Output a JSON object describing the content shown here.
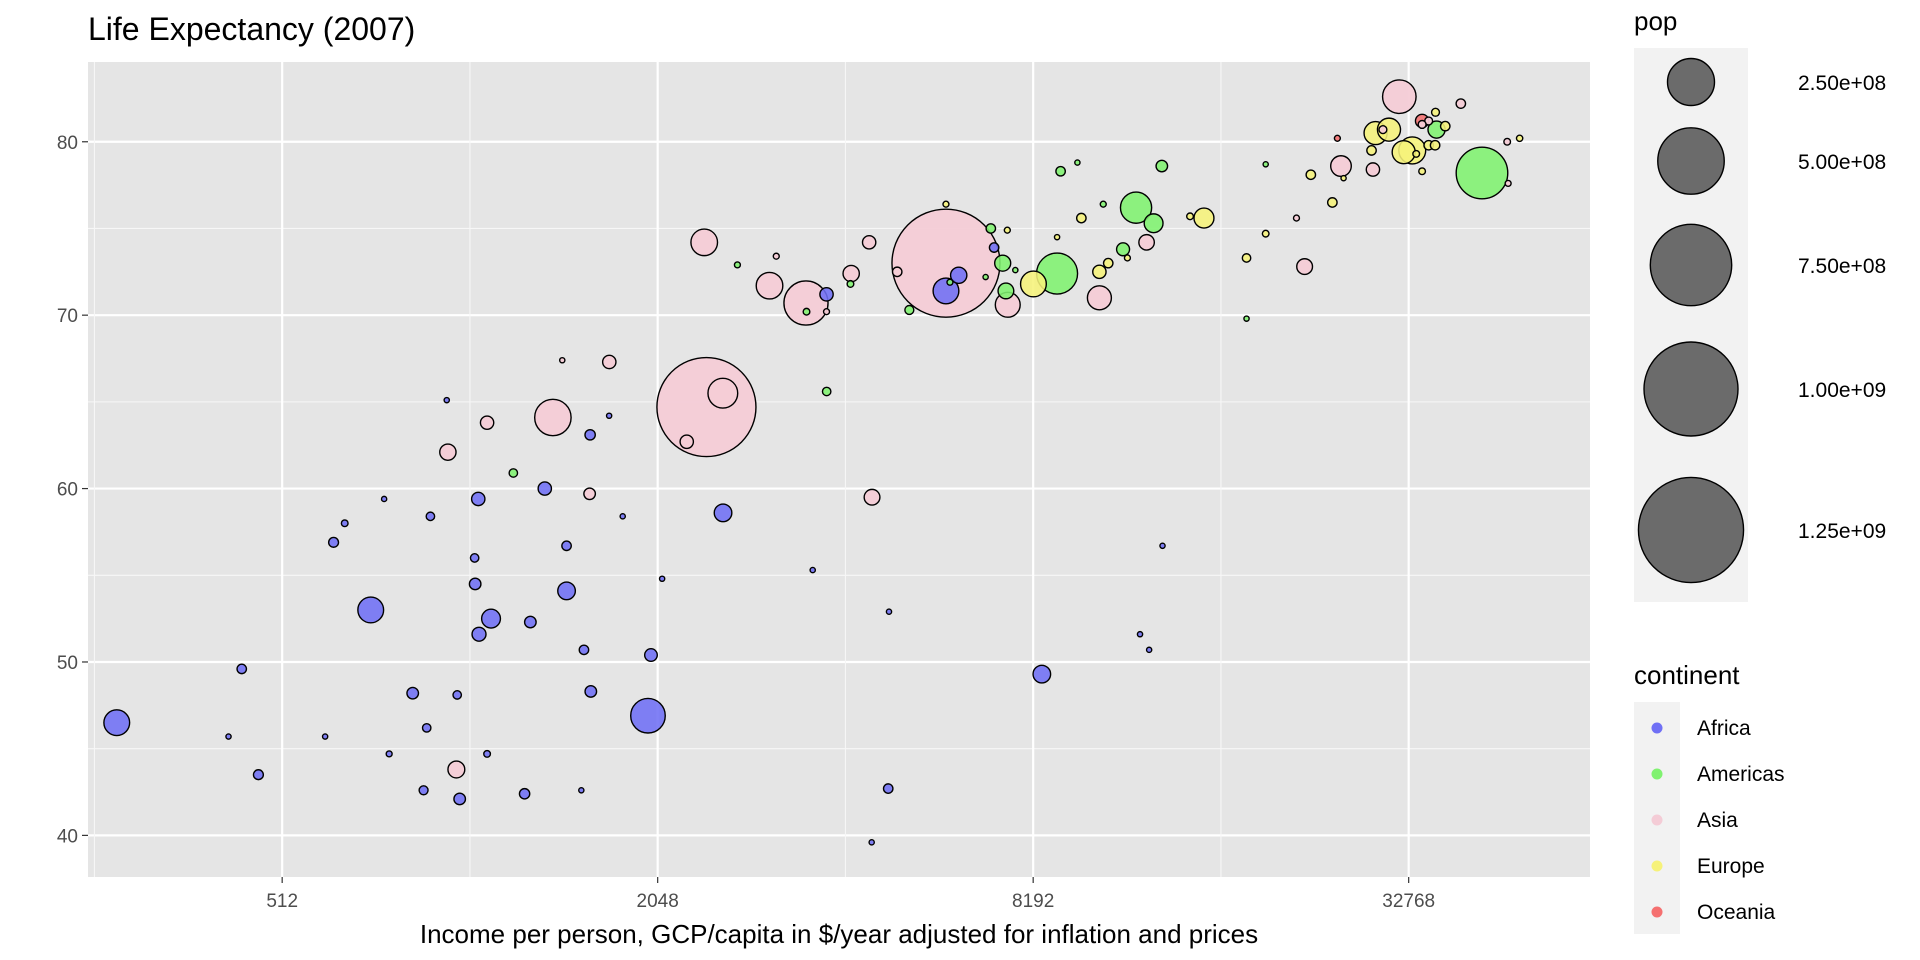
{
  "chart_data": {
    "type": "scatter",
    "title": "Life Expectancy (2007)",
    "xlabel": "Income per person, GCP/capita in $/year adjusted for inflation and prices",
    "ylabel": "",
    "x_scale": "log2",
    "xlim": [
      250,
      64000
    ],
    "ylim": [
      37.6,
      84.6
    ],
    "x_ticks": [
      512,
      2048,
      8192,
      32768
    ],
    "x_tick_labels": [
      "512",
      "2048",
      "8192",
      "32768"
    ],
    "y_ticks": [
      40,
      50,
      60,
      70,
      80
    ],
    "y_tick_labels": [
      "40",
      "50",
      "60",
      "70",
      "80"
    ],
    "grid": true,
    "size_legend": {
      "title": "pop",
      "entries": [
        {
          "label": "2.50e+08",
          "value": 250000000
        },
        {
          "label": "5.00e+08",
          "value": 500000000
        },
        {
          "label": "7.50e+08",
          "value": 750000000
        },
        {
          "label": "1.00e+09",
          "value": 1000000000
        },
        {
          "label": "1.25e+09",
          "value": 1250000000
        }
      ]
    },
    "color_legend": {
      "title": "continent",
      "entries": [
        {
          "label": "Africa",
          "color": "#7070f5"
        },
        {
          "label": "Americas",
          "color": "#80f270"
        },
        {
          "label": "Asia",
          "color": "#f4ccd6"
        },
        {
          "label": "Europe",
          "color": "#f6f27a"
        },
        {
          "label": "Oceania",
          "color": "#f57070"
        }
      ]
    },
    "series": [
      {
        "name": "Africa",
        "points": [
          [
            278,
            46.5,
            75000000.0
          ],
          [
            441,
            49.6,
            10000000.0
          ],
          [
            469,
            43.5,
            11000000.0
          ],
          [
            420,
            45.7,
            3000000.0
          ],
          [
            710,
            53.0,
            75000000.0
          ],
          [
            829,
            48.2,
            15000000.0
          ],
          [
            863,
            42.6,
            9000000.0
          ],
          [
            885,
            58.4,
            8000000.0
          ],
          [
            1056,
            59.4,
            20000000.0
          ],
          [
            1044,
            54.5,
            15000000.0
          ],
          [
            1059,
            51.6,
            22000000.0
          ],
          [
            1107,
            52.5,
            40000000.0
          ],
          [
            1280,
            52.3,
            15000000.0
          ],
          [
            1463,
            54.1,
            35000000.0
          ],
          [
            1350,
            60.0,
            20000000.0
          ],
          [
            1463,
            56.7,
            10000000.0
          ],
          [
            1600,
            48.3,
            15000000.0
          ],
          [
            1560,
            50.7,
            10000000.0
          ],
          [
            1596,
            63.1,
            12000000.0
          ],
          [
            1712,
            64.2,
            3000000.0
          ],
          [
            1998,
            50.4,
            18000000.0
          ],
          [
            1976,
            46.9,
            135000000.0
          ],
          [
            2607,
            58.6,
            35000000.0
          ],
          [
            3820,
            71.2,
            20000000.0
          ],
          [
            3630,
            55.3,
            3000000.0
          ],
          [
            4811,
            52.9,
            2000000.0
          ],
          [
            4797,
            42.7,
            10000000.0
          ],
          [
            4513,
            39.6,
            1000000.0
          ],
          [
            5937,
            71.4,
            75000000.0
          ],
          [
            6223,
            72.3,
            30000000.0
          ],
          [
            7092,
            73.9,
            10000000.0
          ],
          [
            8458,
            49.3,
            35000000.0
          ],
          [
            12154,
            51.6,
            1000000.0
          ],
          [
            12570,
            50.7,
            1500000.0
          ],
          [
            13206,
            56.7,
            1500000.0
          ],
          [
            600,
            45.7,
            2000000.0
          ],
          [
            746,
            59.4,
            1500000.0
          ],
          [
            645,
            58.0,
            5000000.0
          ],
          [
            619,
            56.9,
            11000000.0
          ],
          [
            760,
            44.7,
            4000000.0
          ],
          [
            873,
            46.2,
            8000000.0
          ],
          [
            986,
            42.1,
            15000000.0
          ],
          [
            1091,
            44.7,
            5000000.0
          ],
          [
            1253,
            42.4,
            12000000.0
          ],
          [
            1545,
            42.6,
            2000000.0
          ],
          [
            1042,
            56.0,
            8000000.0
          ],
          [
            977,
            48.1,
            8000000.0
          ],
          [
            940,
            65.1,
            1000000.0
          ],
          [
            1800,
            58.4,
            1000000.0
          ],
          [
            2082,
            54.8,
            1000000.0
          ]
        ]
      },
      {
        "name": "Americas",
        "points": [
          [
            1202,
            60.9,
            8000000.0
          ],
          [
            2749,
            72.9,
            4000000.0
          ],
          [
            3548,
            70.2,
            5000000.0
          ],
          [
            3822,
            65.6,
            8000000.0
          ],
          [
            4173,
            71.8,
            5000000.0
          ],
          [
            5186,
            70.3,
            9000000.0
          ],
          [
            6025,
            71.9,
            4000000.0
          ],
          [
            6873,
            72.2,
            3000000.0
          ],
          [
            7006,
            75.0,
            10000000.0
          ],
          [
            7320,
            73.0,
            29000000.0
          ],
          [
            7670,
            72.6,
            3000000.0
          ],
          [
            7408,
            71.4,
            28000000.0
          ],
          [
            8948,
            72.4,
            190000000.0
          ],
          [
            9065,
            78.3,
            10000000.0
          ],
          [
            9645,
            78.8,
            3000000.0
          ],
          [
            10611,
            76.4,
            4000000.0
          ],
          [
            11977,
            76.2,
            110000000.0
          ],
          [
            12779,
            75.3,
            40000000.0
          ],
          [
            13172,
            78.6,
            15000000.0
          ],
          [
            11416,
            73.8,
            19000000.0
          ],
          [
            18009,
            69.8,
            1000000.0
          ],
          [
            19329,
            78.7,
            3000000.0
          ],
          [
            36319,
            80.7,
            33000000.0
          ],
          [
            42952,
            78.2,
            301000000.0
          ]
        ]
      },
      {
        "name": "Asia",
        "points": [
          [
            974,
            43.8,
            32000000.0
          ],
          [
            944,
            62.1,
            30000000.0
          ],
          [
            1091,
            63.8,
            20000000.0
          ],
          [
            1391,
            64.1,
            150000000.0
          ],
          [
            1713,
            67.3,
            20000000.0
          ],
          [
            1593,
            59.7,
            15000000.0
          ],
          [
            2452,
            64.7,
            1110000000.0
          ],
          [
            2280,
            62.7,
            20000000.0
          ],
          [
            2605,
            65.5,
            100000000.0
          ],
          [
            2432,
            74.2,
            80000000.0
          ],
          [
            3095,
            71.7,
            80000000.0
          ],
          [
            3541,
            70.7,
            220000000.0
          ],
          [
            4184,
            72.4,
            30000000.0
          ],
          [
            4471,
            74.2,
            20000000.0
          ],
          [
            4519,
            59.5,
            28000000.0
          ],
          [
            4959,
            72.5,
            10000000.0
          ],
          [
            5937,
            73.0,
            1320000000.0
          ],
          [
            7458,
            70.6,
            70000000.0
          ],
          [
            10461,
            71.0,
            65000000.0
          ],
          [
            12452,
            74.2,
            27000000.0
          ],
          [
            22316,
            72.8,
            28000000.0
          ],
          [
            25523,
            78.6,
            48000000.0
          ],
          [
            28718,
            78.4,
            20000000.0
          ],
          [
            31656,
            82.6,
            127000000.0
          ],
          [
            29796,
            80.7,
            7000000.0
          ],
          [
            39725,
            82.2,
            10000000.0
          ],
          [
            47143,
            80.0,
            5000000.0
          ],
          [
            47307,
            77.6,
            4000000.0
          ],
          [
            35278,
            81.2,
            7000000.0
          ],
          [
            34435,
            81.0,
            7000000.0
          ],
          [
            3173,
            73.4,
            4000000.0
          ],
          [
            3820,
            70.2,
            4000000.0
          ],
          [
            21655,
            75.6,
            4000000.0
          ],
          [
            1440,
            67.4,
            2000000.0
          ]
        ]
      },
      {
        "name": "Europe",
        "points": [
          [
            5937,
            76.4,
            4000000.0
          ],
          [
            7446,
            74.9,
            4000000.0
          ],
          [
            8948,
            74.5,
            2000000.0
          ],
          [
            9787,
            75.6,
            10000000.0
          ],
          [
            10808,
            73.0,
            10000000.0
          ],
          [
            11601,
            73.3,
            4000000.0
          ],
          [
            10461,
            72.5,
            20000000.0
          ],
          [
            8200,
            71.8,
            75000000.0
          ],
          [
            14619,
            75.7,
            5000000.0
          ],
          [
            15390,
            75.6,
            45000000.0
          ],
          [
            18009,
            73.3,
            8000000.0
          ],
          [
            19329,
            74.7,
            5000000.0
          ],
          [
            22833,
            78.1,
            10000000.0
          ],
          [
            24723,
            76.5,
            10000000.0
          ],
          [
            28569,
            79.5,
            10000000.0
          ],
          [
            29000,
            80.5,
            60000000.0
          ],
          [
            30470,
            80.7,
            60000000.0
          ],
          [
            32170,
            79.4,
            60000000.0
          ],
          [
            33203,
            79.5,
            82000000.0
          ],
          [
            33693,
            79.3,
            5000000.0
          ],
          [
            35278,
            79.8,
            10000000.0
          ],
          [
            36126,
            79.8,
            10000000.0
          ],
          [
            37506,
            80.9,
            10000000.0
          ],
          [
            34435,
            78.3,
            5000000.0
          ],
          [
            49357,
            80.2,
            4500000.0
          ],
          [
            36181,
            81.7,
            7000000.0
          ],
          [
            25768,
            77.9,
            2000000.0
          ]
        ]
      },
      {
        "name": "Oceania",
        "points": [
          [
            25185,
            80.2,
            4000000.0
          ],
          [
            34435,
            81.2,
            20000000.0
          ]
        ]
      }
    ]
  }
}
